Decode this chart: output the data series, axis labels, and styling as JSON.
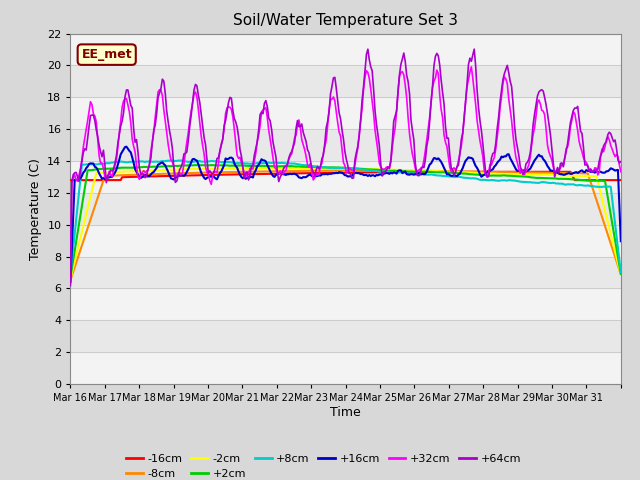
{
  "title": "Soil/Water Temperature Set 3",
  "xlabel": "Time",
  "ylabel": "Temperature (C)",
  "ylim": [
    0,
    22
  ],
  "yticks": [
    0,
    2,
    4,
    6,
    8,
    10,
    12,
    14,
    16,
    18,
    20,
    22
  ],
  "annotation_text": "EE_met",
  "annotation_bg": "#ffffcc",
  "annotation_border": "#800000",
  "fig_bg": "#d8d8d8",
  "plot_bg": "#e8e8e8",
  "legend_entries": [
    "-16cm",
    "-8cm",
    "-2cm",
    "+2cm",
    "+8cm",
    "+16cm",
    "+32cm",
    "+64cm"
  ],
  "legend_colors": [
    "#ff0000",
    "#ff8800",
    "#ffff00",
    "#00cc00",
    "#00cccc",
    "#0000cc",
    "#ff00ff",
    "#aa00cc"
  ],
  "series_colors": [
    "#ff0000",
    "#ff8800",
    "#ffff00",
    "#00cc00",
    "#00cccc",
    "#0000cc",
    "#ff00ff",
    "#aa00cc"
  ],
  "tick_labels": [
    "Mar 16",
    "Mar 17",
    "Mar 18",
    "Mar 19",
    "Mar 20",
    "Mar 21",
    "Mar 22",
    "Mar 23",
    "Mar 24",
    "Mar 25",
    "Mar 26",
    "Mar 27",
    "Mar 28",
    "Mar 29",
    "Mar 30",
    "Mar 31"
  ]
}
